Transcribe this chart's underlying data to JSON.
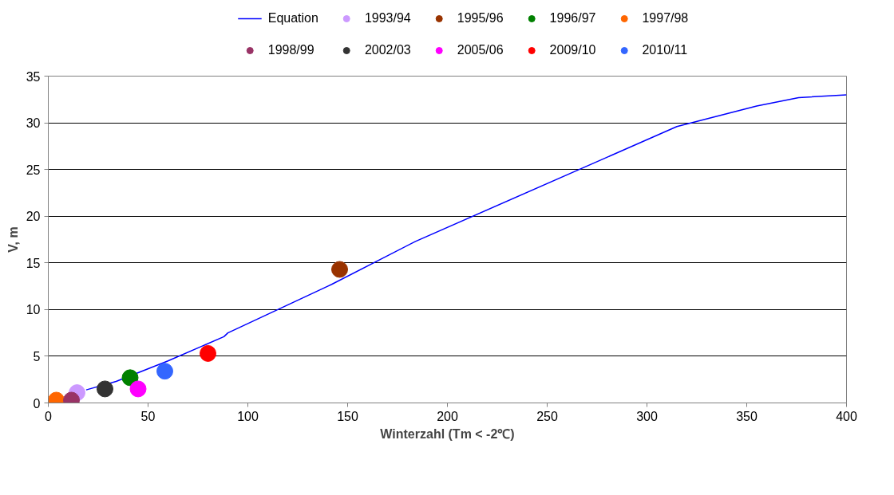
{
  "chart_data": {
    "type": "scatter",
    "xlabel": "Winterzahl (Tm < -2℃)",
    "ylabel": "V, m",
    "xlim": [
      0,
      400
    ],
    "xticks": [
      0,
      50,
      100,
      150,
      200,
      250,
      300,
      350,
      400
    ],
    "ylim": [
      0,
      35
    ],
    "yticks": [
      0,
      5,
      10,
      15,
      20,
      25,
      30,
      35
    ],
    "grid": "y",
    "legend": "top",
    "marker": "circle",
    "series": [
      {
        "name": "Equation",
        "type": "line",
        "marker": "none",
        "color": "#0000ff",
        "x": [
          19,
          34,
          60,
          88,
          90,
          140,
          142,
          184,
          315,
          355,
          376,
          400
        ],
        "values": [
          1.4,
          2.3,
          4.5,
          7.1,
          7.5,
          12.5,
          12.7,
          17.3,
          29.6,
          31.8,
          32.7,
          33.0
        ]
      },
      {
        "name": "1993/94",
        "color": "#cc99ff",
        "x": [
          14.4
        ],
        "values": [
          1.1
        ]
      },
      {
        "name": "1995/96",
        "color": "#993300",
        "x": [
          146
        ],
        "values": [
          14.3
        ]
      },
      {
        "name": "1996/97",
        "color": "#008000",
        "x": [
          41
        ],
        "values": [
          2.7
        ]
      },
      {
        "name": "1997/98",
        "color": "#ff6600",
        "x": [
          4
        ],
        "values": [
          0.3
        ]
      },
      {
        "name": "1998/99",
        "color": "#993366",
        "x": [
          11.6
        ],
        "values": [
          0.3
        ]
      },
      {
        "name": "2002/03",
        "color": "#333333",
        "x": [
          28.4
        ],
        "values": [
          1.5
        ]
      },
      {
        "name": "2005/06",
        "color": "#ff00ff",
        "x": [
          45
        ],
        "values": [
          1.5
        ]
      },
      {
        "name": "2009/10",
        "color": "#ff0000",
        "x": [
          80
        ],
        "values": [
          5.3
        ]
      },
      {
        "name": "2010/11",
        "color": "#3366ff",
        "x": [
          58.4
        ],
        "values": [
          3.4
        ]
      }
    ]
  }
}
